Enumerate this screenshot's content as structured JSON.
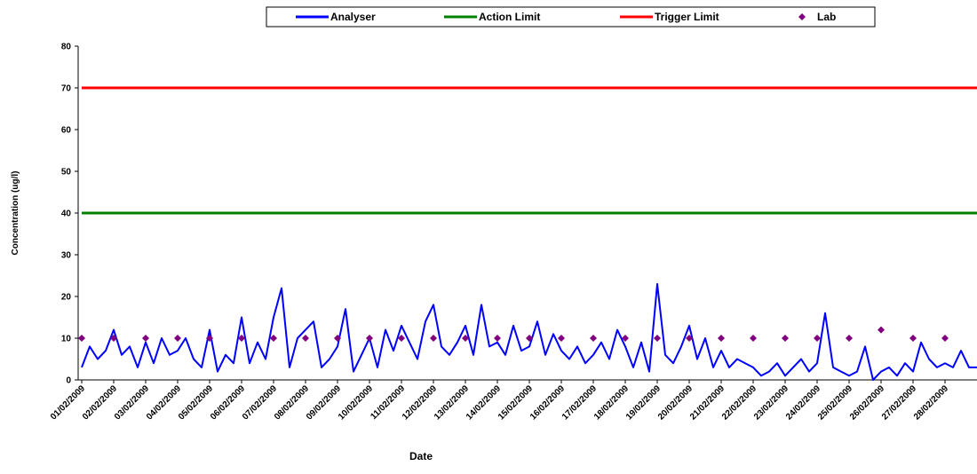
{
  "chart_data": {
    "type": "line",
    "y_label": "Concentration (ug/l)",
    "x_label": "Date",
    "xlim": [
      0,
      28
    ],
    "ylim": [
      0,
      80
    ],
    "yticks": [
      0,
      10,
      20,
      30,
      40,
      50,
      60,
      70,
      80
    ],
    "xticks": [
      {
        "value": 0,
        "label": "01/02/2009"
      },
      {
        "value": 1,
        "label": "02/02/2009"
      },
      {
        "value": 2,
        "label": "03/02/2009"
      },
      {
        "value": 3,
        "label": "04/02/2009"
      },
      {
        "value": 4,
        "label": "05/02/2009"
      },
      {
        "value": 5,
        "label": "06/02/2009"
      },
      {
        "value": 6,
        "label": "07/02/2009"
      },
      {
        "value": 7,
        "label": "08/02/2009"
      },
      {
        "value": 8,
        "label": "09/02/2009"
      },
      {
        "value": 9,
        "label": "10/02/2009"
      },
      {
        "value": 10,
        "label": "11/02/2009"
      },
      {
        "value": 11,
        "label": "12/02/2009"
      },
      {
        "value": 12,
        "label": "13/02/2009"
      },
      {
        "value": 13,
        "label": "14/02/2009"
      },
      {
        "value": 14,
        "label": "15/02/2009"
      },
      {
        "value": 15,
        "label": "16/02/2009"
      },
      {
        "value": 16,
        "label": "17/02/2009"
      },
      {
        "value": 17,
        "label": "18/02/2009"
      },
      {
        "value": 18,
        "label": "19/02/2009"
      },
      {
        "value": 19,
        "label": "20/02/2009"
      },
      {
        "value": 20,
        "label": "21/02/2009"
      },
      {
        "value": 21,
        "label": "22/02/2009"
      },
      {
        "value": 22,
        "label": "23/02/2009"
      },
      {
        "value": 23,
        "label": "24/02/2009"
      },
      {
        "value": 24,
        "label": "25/02/2009"
      },
      {
        "value": 25,
        "label": "26/02/2009"
      },
      {
        "value": 26,
        "label": "27/02/2009"
      },
      {
        "value": 27,
        "label": "28/02/2009"
      }
    ],
    "series": [
      {
        "name": "Analyser",
        "color": "#0000ff",
        "style": "line",
        "x": [
          0,
          0.25,
          0.5,
          0.75,
          1,
          1.25,
          1.5,
          1.75,
          2,
          2.25,
          2.5,
          2.75,
          3,
          3.25,
          3.5,
          3.75,
          4,
          4.25,
          4.5,
          4.75,
          5,
          5.25,
          5.5,
          5.75,
          6,
          6.25,
          6.5,
          6.75,
          7,
          7.25,
          7.5,
          7.75,
          8,
          8.25,
          8.5,
          8.75,
          9,
          9.25,
          9.5,
          9.75,
          10,
          10.25,
          10.5,
          10.75,
          11,
          11.25,
          11.5,
          11.75,
          12,
          12.25,
          12.5,
          12.75,
          13,
          13.25,
          13.5,
          13.75,
          14,
          14.25,
          14.5,
          14.75,
          15,
          15.25,
          15.5,
          15.75,
          16,
          16.25,
          16.5,
          16.75,
          17,
          17.25,
          17.5,
          17.75,
          18,
          18.25,
          18.5,
          18.75,
          19,
          19.25,
          19.5,
          19.75,
          20,
          20.25,
          20.5,
          20.75,
          21,
          21.25,
          21.5,
          21.75,
          22,
          22.25,
          22.5,
          22.75,
          23,
          23.25,
          23.5,
          23.75,
          24,
          24.25,
          24.5,
          24.75,
          25,
          25.25,
          25.5,
          25.75,
          26,
          26.25,
          26.5,
          26.75,
          27,
          27.25,
          27.5,
          27.75,
          28
        ],
        "values": [
          3,
          8,
          5,
          7,
          12,
          6,
          8,
          3,
          9,
          4,
          10,
          6,
          7,
          10,
          5,
          3,
          12,
          2,
          6,
          4,
          15,
          4,
          9,
          5,
          15,
          22,
          3,
          10,
          12,
          14,
          3,
          5,
          8,
          17,
          2,
          6,
          10,
          3,
          12,
          7,
          13,
          9,
          5,
          14,
          18,
          8,
          6,
          9,
          13,
          6,
          18,
          8,
          9,
          6,
          13,
          7,
          8,
          14,
          6,
          11,
          7,
          5,
          8,
          4,
          6,
          9,
          5,
          12,
          8,
          3,
          9,
          2,
          23,
          6,
          4,
          8,
          13,
          5,
          10,
          3,
          7,
          3,
          5,
          4,
          3,
          1,
          2,
          4,
          1,
          3,
          5,
          2,
          4,
          16,
          3,
          2,
          1,
          2,
          8,
          0,
          2,
          3,
          1,
          4,
          2,
          9,
          5,
          3,
          4,
          3,
          7,
          3,
          3
        ]
      },
      {
        "name": "Action Limit",
        "color": "#008000",
        "style": "line",
        "x": [
          0,
          28
        ],
        "values": [
          40,
          40
        ]
      },
      {
        "name": "Trigger Limit",
        "color": "#ff0000",
        "style": "line",
        "x": [
          0,
          28
        ],
        "values": [
          70,
          70
        ]
      },
      {
        "name": "Lab",
        "color": "#800080",
        "style": "marker",
        "x": [
          0,
          1,
          2,
          3,
          4,
          5,
          6,
          7,
          8,
          9,
          10,
          11,
          12,
          13,
          14,
          15,
          16,
          17,
          18,
          19,
          20,
          21,
          22,
          23,
          24,
          25,
          26,
          27
        ],
        "values": [
          10,
          10,
          10,
          10,
          10,
          10,
          10,
          10,
          10,
          10,
          10,
          10,
          10,
          10,
          10,
          10,
          10,
          10,
          10,
          10,
          10,
          10,
          10,
          10,
          10,
          12,
          10,
          10
        ]
      }
    ]
  }
}
